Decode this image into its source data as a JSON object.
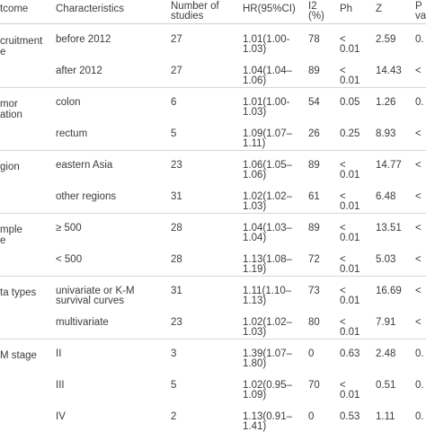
{
  "table": {
    "header": {
      "outcome": "tcome",
      "characteristics": "Characteristics",
      "studies_line1": "Number of",
      "studies_line2": "studies",
      "hr": "HR(95%CI)",
      "i2_line1": "I2",
      "i2_line2": "(%)",
      "ph": "Ph",
      "z": "Z",
      "p_line1": "P",
      "p_line2": "va"
    },
    "groups": [
      {
        "outcome_line1": "cruitment",
        "outcome_line2": "e",
        "rows": [
          {
            "characteristic": "before 2012",
            "studies": "27",
            "hr_line1": "1.01(1.00-",
            "hr_line2": "1.03)",
            "i2": "78",
            "ph_line1": "<",
            "ph_line2": "0.01",
            "z": "2.59",
            "p": "0."
          },
          {
            "characteristic": "after 2012",
            "studies": "27",
            "hr_line1": "1.04(1.04–",
            "hr_line2": "1.06)",
            "i2": "89",
            "ph_line1": "<",
            "ph_line2": "0.01",
            "z": "14.43",
            "p": "<"
          }
        ]
      },
      {
        "outcome_line1": "mor",
        "outcome_line2": "ation",
        "rows": [
          {
            "characteristic": "colon",
            "studies": "6",
            "hr_line1": "1.01(1.00-",
            "hr_line2": "1.03)",
            "i2": "54",
            "ph_line1": "0.05",
            "ph_line2": "",
            "z": "1.26",
            "p": "0."
          },
          {
            "characteristic": "rectum",
            "studies": "5",
            "hr_line1": "1.09(1.07–",
            "hr_line2": "1.11)",
            "i2": "26",
            "ph_line1": "0.25",
            "ph_line2": "",
            "z": "8.93",
            "p": "<"
          }
        ]
      },
      {
        "outcome_line1": "gion",
        "outcome_line2": "",
        "rows": [
          {
            "characteristic": "eastern Asia",
            "studies": "23",
            "hr_line1": "1.06(1.05–",
            "hr_line2": "1.06)",
            "i2": "89",
            "ph_line1": "<",
            "ph_line2": "0.01",
            "z": "14.77",
            "p": "<"
          },
          {
            "characteristic": "other regions",
            "studies": "31",
            "hr_line1": "1.02(1.02–",
            "hr_line2": "1.03)",
            "i2": "61",
            "ph_line1": "<",
            "ph_line2": "0.01",
            "z": "6.48",
            "p": "<"
          }
        ]
      },
      {
        "outcome_line1": "mple",
        "outcome_line2": "e",
        "rows": [
          {
            "characteristic": "≥ 500",
            "studies": "28",
            "hr_line1": "1.04(1.03–",
            "hr_line2": "1.04)",
            "i2": "89",
            "ph_line1": "<",
            "ph_line2": "0.01",
            "z": "13.51",
            "p": "<"
          },
          {
            "characteristic": "< 500",
            "studies": "28",
            "hr_line1": "1.13(1.08–",
            "hr_line2": "1.19)",
            "i2": "72",
            "ph_line1": "<",
            "ph_line2": "0.01",
            "z": "5.03",
            "p": "<"
          }
        ]
      },
      {
        "outcome_line1": "ta types",
        "outcome_line2": "",
        "rows": [
          {
            "characteristic": "univariate or K-M",
            "characteristic_line2": "survival curves",
            "studies": "31",
            "hr_line1": "1.11(1.10–",
            "hr_line2": "1.13)",
            "i2": "73",
            "ph_line1": "<",
            "ph_line2": "0.01",
            "z": "16.69",
            "p": "<"
          },
          {
            "characteristic": "multivariate",
            "studies": "23",
            "hr_line1": "1.02(1.02–",
            "hr_line2": "1.03)",
            "i2": "80",
            "ph_line1": "<",
            "ph_line2": "0.01",
            "z": "7.91",
            "p": "<"
          }
        ]
      },
      {
        "outcome_line1": "M stage",
        "outcome_line2": "",
        "rows": [
          {
            "characteristic": "II",
            "studies": "3",
            "hr_line1": "1.39(1.07–",
            "hr_line2": "1.80)",
            "i2": "0",
            "ph_line1": "0.63",
            "ph_line2": "",
            "z": "2.48",
            "p": "0."
          },
          {
            "characteristic": "III",
            "studies": "5",
            "hr_line1": "1.02(0.95–",
            "hr_line2": "1.09)",
            "i2": "70",
            "ph_line1": "<",
            "ph_line2": "0.01",
            "z": "0.51",
            "p": "0."
          },
          {
            "characteristic": "IV",
            "studies": "2",
            "hr_line1": "1.13(0.91–",
            "hr_line2": "1.41)",
            "i2": "0",
            "ph_line1": "0.53",
            "ph_line2": "",
            "z": "1.11",
            "p": "0."
          }
        ]
      }
    ]
  }
}
